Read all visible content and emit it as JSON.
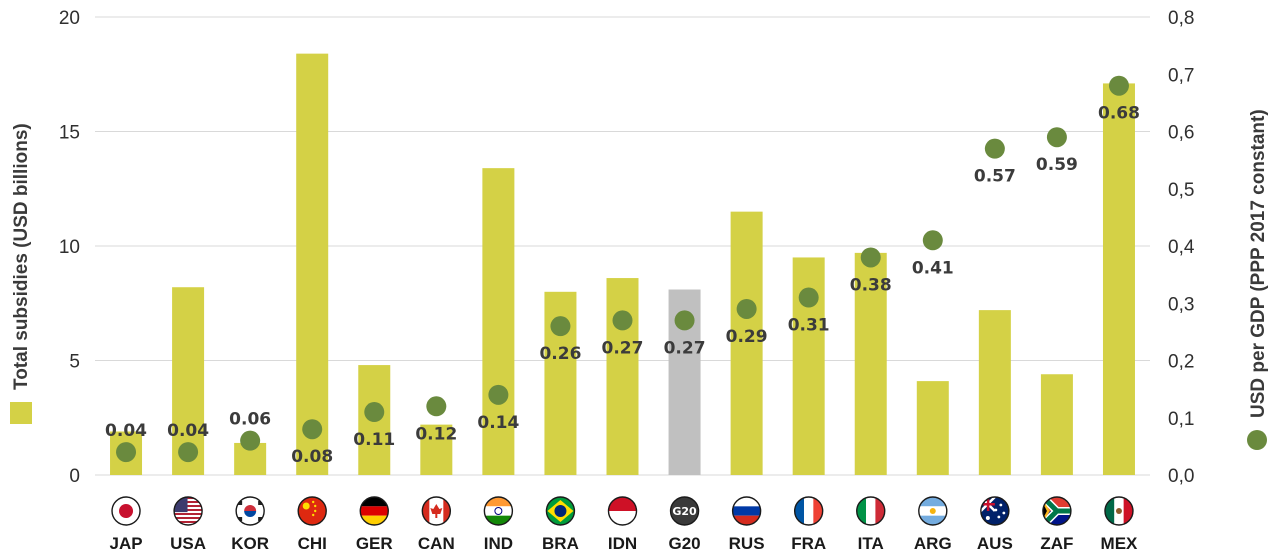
{
  "chart_data": {
    "type": "bar",
    "categories": [
      "JAP",
      "USA",
      "KOR",
      "CHI",
      "GER",
      "CAN",
      "IND",
      "BRA",
      "IDN",
      "G20",
      "RUS",
      "FRA",
      "ITA",
      "ARG",
      "AUS",
      "ZAF",
      "MEX"
    ],
    "series": [
      {
        "values": [
          1.9,
          8.2,
          1.4,
          18.4,
          4.8,
          2.2,
          13.4,
          8.0,
          8.6,
          8.1,
          11.5,
          9.5,
          9.7,
          4.1,
          7.2,
          4.4,
          17.1
        ],
        "axis": "left",
        "color": "#d4d146",
        "highlight": {
          "G20": "#c0c0c0"
        }
      },
      {
        "values": [
          0.04,
          0.04,
          0.06,
          0.08,
          0.11,
          0.12,
          0.14,
          0.26,
          0.27,
          0.27,
          0.29,
          0.31,
          0.38,
          0.41,
          0.57,
          0.59,
          0.68
        ],
        "axis": "right",
        "color": "#6a8a3e",
        "marker": "circle"
      }
    ],
    "data_labels": [
      "0.04",
      "0.04",
      "0.06",
      "0.08",
      "0.11",
      "0.12",
      "0.14",
      "0.26",
      "0.27",
      "0.27",
      "0.29",
      "0.31",
      "0.38",
      "0.41",
      "0.57",
      "0.59",
      "0.68"
    ],
    "ylabel": "Total subsidies (USD billions)",
    "y2label": "USD per GDP (PPP 2017 constant)",
    "ylim": [
      0,
      20
    ],
    "yticks": [
      "0",
      "5",
      "10",
      "15",
      "20"
    ],
    "y2lim": [
      0,
      0.8
    ],
    "y2ticks": [
      "0,0",
      "0,1",
      "0,2",
      "0,3",
      "0,4",
      "0,5",
      "0,6",
      "0,7",
      "0,8"
    ],
    "grid": "horizontal",
    "legend": "axis titles",
    "flag_icons": [
      "japan-flag-icon",
      "usa-flag-icon",
      "korea-flag-icon",
      "china-flag-icon",
      "germany-flag-icon",
      "canada-flag-icon",
      "india-flag-icon",
      "brazil-flag-icon",
      "indonesia-flag-icon",
      "g20-badge-icon",
      "russia-flag-icon",
      "france-flag-icon",
      "italy-flag-icon",
      "argentina-flag-icon",
      "australia-flag-icon",
      "south-africa-flag-icon",
      "mexico-flag-icon"
    ],
    "g20_badge_text": "G20"
  }
}
